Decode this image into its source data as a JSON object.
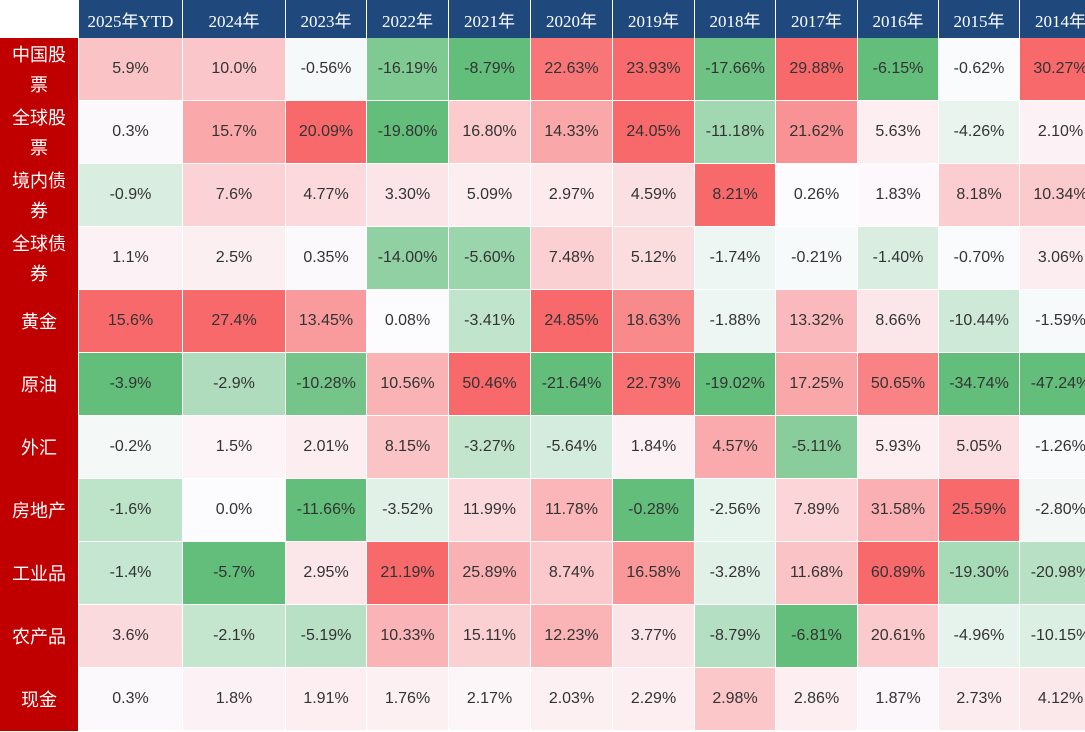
{
  "chart_data": {
    "type": "heatmap",
    "x": [
      "2025年YTD",
      "2024年",
      "2023年",
      "2022年",
      "2021年",
      "2020年",
      "2019年",
      "2018年",
      "2017年",
      "2016年",
      "2015年",
      "2014年"
    ],
    "y": [
      "中国股票",
      "全球股票",
      "境内债券",
      "全球债券",
      "黄金",
      "原油",
      "外汇",
      "房地产",
      "工业品",
      "农产品",
      "现金"
    ],
    "colors": {
      "header_bg": "#1f497d",
      "row_label_bg": "#c00000",
      "positive": "#f8696b",
      "negative": "#63be7b",
      "neutral": "#fcfcff"
    },
    "values": [
      [
        "5.9%",
        "10.0%",
        "-0.56%",
        "-16.19%",
        "-8.79%",
        "22.63%",
        "23.93%",
        "-17.66%",
        "29.88%",
        "-6.15%",
        "-0.62%",
        "30.27%"
      ],
      [
        "0.3%",
        "15.7%",
        "20.09%",
        "-19.80%",
        "16.80%",
        "14.33%",
        "24.05%",
        "-11.18%",
        "21.62%",
        "5.63%",
        "-4.26%",
        "2.10%"
      ],
      [
        "-0.9%",
        "7.6%",
        "4.77%",
        "3.30%",
        "5.09%",
        "2.97%",
        "4.59%",
        "8.21%",
        "0.26%",
        "1.83%",
        "8.18%",
        "10.34%"
      ],
      [
        "1.1%",
        "2.5%",
        "0.35%",
        "-14.00%",
        "-5.60%",
        "7.48%",
        "5.12%",
        "-1.74%",
        "-0.21%",
        "-1.40%",
        "-0.70%",
        "3.06%"
      ],
      [
        "15.6%",
        "27.4%",
        "13.45%",
        "0.08%",
        "-3.41%",
        "24.85%",
        "18.63%",
        "-1.88%",
        "13.32%",
        "8.66%",
        "-10.44%",
        "-1.59%"
      ],
      [
        "-3.9%",
        "-2.9%",
        "-10.28%",
        "10.56%",
        "50.46%",
        "-21.64%",
        "22.73%",
        "-19.02%",
        "17.25%",
        "50.65%",
        "-34.74%",
        "-47.24%"
      ],
      [
        "-0.2%",
        "1.5%",
        "2.01%",
        "8.15%",
        "-3.27%",
        "-5.64%",
        "1.84%",
        "4.57%",
        "-5.11%",
        "5.93%",
        "5.05%",
        "-1.26%"
      ],
      [
        "-1.6%",
        "0.0%",
        "-11.66%",
        "-3.52%",
        "11.99%",
        "11.78%",
        "-0.28%",
        "-2.56%",
        "7.89%",
        "31.58%",
        "25.59%",
        "-2.80%"
      ],
      [
        "-1.4%",
        "-5.7%",
        "2.95%",
        "21.19%",
        "25.89%",
        "8.74%",
        "16.58%",
        "-3.28%",
        "11.68%",
        "60.89%",
        "-19.30%",
        "-20.98%"
      ],
      [
        "3.6%",
        "-2.1%",
        "-5.19%",
        "10.33%",
        "15.11%",
        "12.23%",
        "3.77%",
        "-8.79%",
        "-6.81%",
        "20.61%",
        "-4.96%",
        "-10.15%"
      ],
      [
        "0.3%",
        "1.8%",
        "1.91%",
        "1.76%",
        "2.17%",
        "2.03%",
        "2.29%",
        "2.98%",
        "2.86%",
        "1.87%",
        "2.73%",
        "4.12%"
      ]
    ]
  }
}
